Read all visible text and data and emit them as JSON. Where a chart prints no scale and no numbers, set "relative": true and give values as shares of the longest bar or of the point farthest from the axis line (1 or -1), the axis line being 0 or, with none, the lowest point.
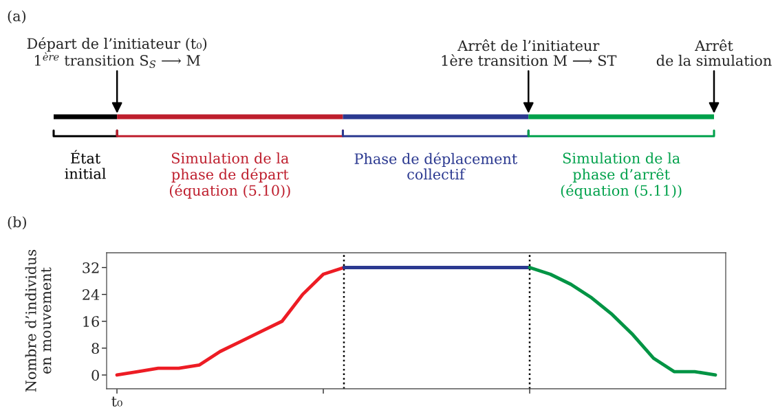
{
  "chart_data": [
    {
      "type": "bar",
      "orientation": "horizontal",
      "stacked": true,
      "relative": true,
      "title": "(a)",
      "categories": [
        null
      ],
      "series": [
        {
          "name": "État\ninitial",
          "color": "#000000",
          "values": [
            0.096
          ]
        },
        {
          "name": "Simulation de la\nphase de départ\n(équation (5.10))",
          "color": "#be1e2d",
          "values": [
            0.342
          ]
        },
        {
          "name": "Phase de déplacement\ncollectif",
          "color": "#2b3990",
          "values": [
            0.281
          ]
        },
        {
          "name": "Simulation de la\nphase d’arrêt\n(équation (5.11))",
          "color": "#00a14b",
          "values": [
            0.281
          ]
        }
      ],
      "annotations": [
        "Départ de l’initiateur (t₀)\n1$^{ère}$ transition S$_{S}$ ⟶ M",
        "Arrêt de l’initiateur\n1ère transition M ⟶ ST",
        "Arrêt\nde la simulation"
      ],
      "legend": "bottom"
    },
    {
      "type": "line",
      "title": "(b)",
      "ylabel": "Nombre d’individus\nen mouvement",
      "categories": [
        "t₀",
        null,
        null,
        null,
        null,
        null,
        null,
        null,
        null,
        null,
        null,
        null,
        null,
        null,
        null,
        null,
        null,
        null,
        null,
        null,
        null,
        null,
        null,
        null,
        null,
        null,
        null,
        null,
        null,
        null
      ],
      "ylim": [
        -4.1,
        36.4
      ],
      "yticks": [
        0,
        8,
        16,
        24,
        32
      ],
      "series": [
        {
          "color": "#ed1c24",
          "values": [
            0,
            1,
            2,
            2,
            3,
            7,
            10,
            13,
            16,
            24,
            30,
            32,
            null,
            null,
            null,
            null,
            null,
            null,
            null,
            null,
            null,
            null,
            null,
            null,
            null,
            null,
            null,
            null,
            null,
            null
          ]
        },
        {
          "color": "#2b3990",
          "values": [
            null,
            null,
            null,
            null,
            null,
            null,
            null,
            null,
            null,
            null,
            null,
            32,
            32,
            32,
            32,
            32,
            32,
            32,
            32,
            32,
            32,
            null,
            null,
            null,
            null,
            null,
            null,
            null,
            null,
            null
          ]
        },
        {
          "color": "#009444",
          "values": [
            null,
            null,
            null,
            null,
            null,
            null,
            null,
            null,
            null,
            null,
            null,
            null,
            null,
            null,
            null,
            null,
            null,
            null,
            null,
            null,
            32,
            30,
            27,
            23,
            18,
            12,
            5,
            1,
            1,
            0
          ]
        }
      ],
      "grid": false,
      "legend": false,
      "marker": "none",
      "line_style": "solid"
    }
  ]
}
